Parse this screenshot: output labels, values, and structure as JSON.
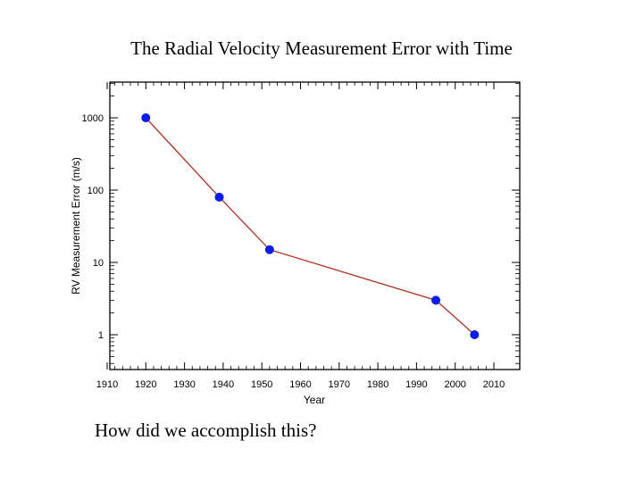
{
  "slide": {
    "title": "The Radial Velocity Measurement Error with Time",
    "question": "How did we accomplish this?"
  },
  "chart_data": {
    "type": "line",
    "xlabel": "Year",
    "ylabel": "RV Measurement Error (m/s)",
    "xlim": [
      1910,
      2010
    ],
    "ylim": [
      0.5,
      3000
    ],
    "yscale": "log",
    "x_ticks": [
      1910,
      1920,
      1930,
      1940,
      1950,
      1960,
      1970,
      1980,
      1990,
      2000,
      2010
    ],
    "x_tick_labels": [
      "1910",
      "1920",
      "1930",
      "1940",
      "1950",
      "1960",
      "1970",
      "1980",
      "1990",
      "2000",
      "2010"
    ],
    "y_ticks": [
      1,
      10,
      100,
      1000
    ],
    "y_tick_labels": [
      "1",
      "10",
      "100",
      "1000"
    ],
    "grid": false,
    "series": [
      {
        "x": [
          1920,
          1939,
          1952,
          1995,
          2005
        ],
        "y": [
          1000,
          80,
          15,
          3,
          1
        ],
        "marker_color": "#0a1ee6",
        "line_color": "#b03024"
      }
    ]
  }
}
